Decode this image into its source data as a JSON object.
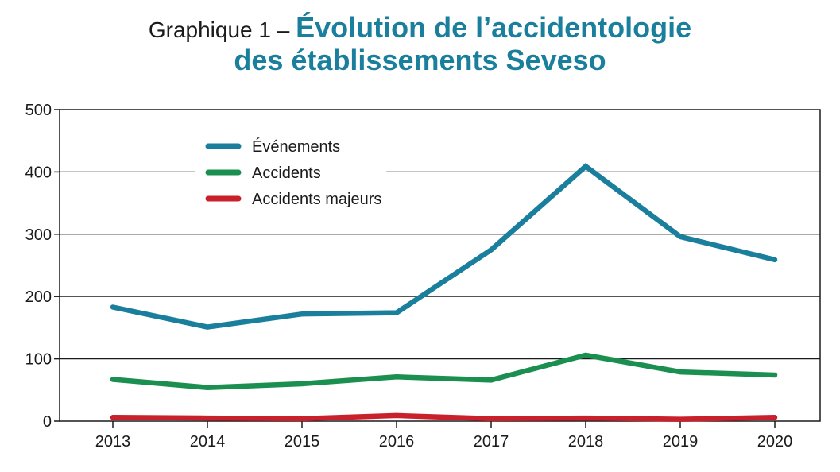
{
  "title": {
    "prefix": "Graphique 1 – ",
    "main_line1": "Évolution de l’accidentologie",
    "main_line2": "des établissements Seveso"
  },
  "chart_data": {
    "type": "line",
    "title": "Graphique 1 – Évolution de l’accidentologie des établissements Seveso",
    "xlabel": "",
    "ylabel": "",
    "ylim": [
      0,
      500
    ],
    "yticks": [
      0,
      100,
      200,
      300,
      400,
      500
    ],
    "categories": [
      "2013",
      "2014",
      "2015",
      "2016",
      "2017",
      "2018",
      "2019",
      "2020"
    ],
    "grid": "horizontal",
    "legend_position": "top-left",
    "series": [
      {
        "name": "Événements",
        "color": "#1a7f9c",
        "values": [
          183,
          151,
          172,
          174,
          275,
          409,
          296,
          259
        ]
      },
      {
        "name": "Accidents",
        "color": "#1a8f50",
        "values": [
          67,
          54,
          60,
          71,
          66,
          106,
          79,
          74
        ]
      },
      {
        "name": "Accidents majeurs",
        "color": "#c9212b",
        "values": [
          6,
          5,
          4,
          9,
          4,
          5,
          3,
          6
        ]
      }
    ]
  }
}
